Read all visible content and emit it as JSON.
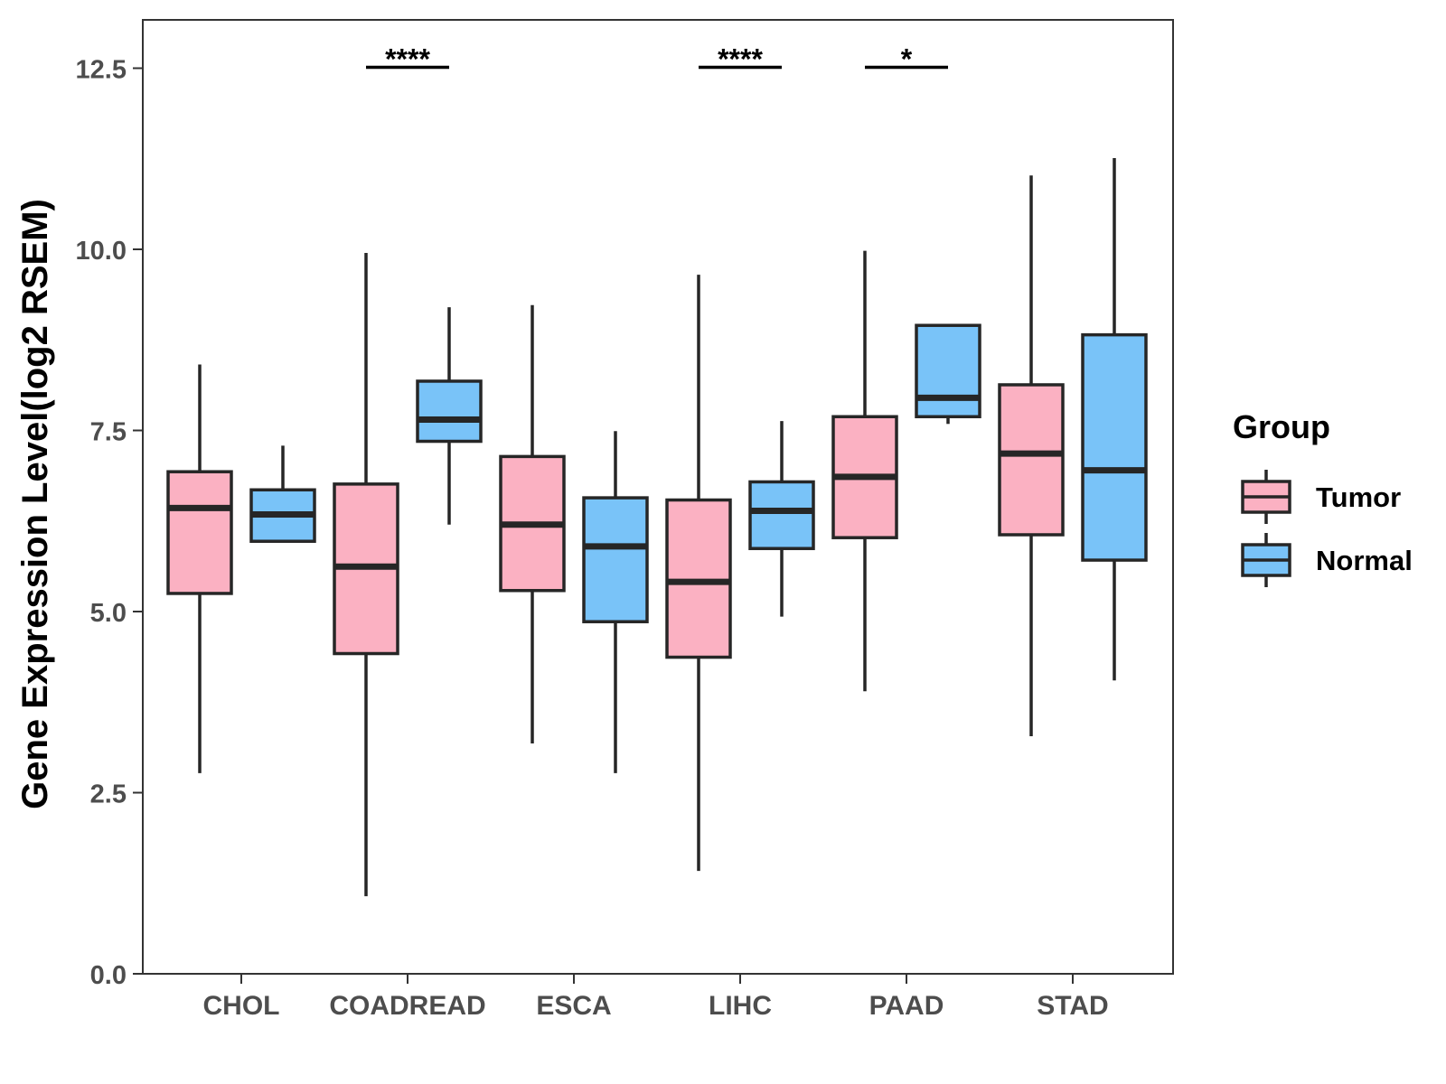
{
  "chart_data": {
    "type": "boxplot",
    "title": "",
    "xlabel": "",
    "ylabel": "Gene Expression Level(log2 RSEM)",
    "ylim": [
      0,
      12.8
    ],
    "yticks": [
      "0.0",
      "2.5",
      "5.0",
      "7.5",
      "10.0",
      "12.5"
    ],
    "ytick_values": [
      0,
      2.5,
      5,
      7.5,
      10,
      12.5
    ],
    "grid": false,
    "categories": [
      "CHOL",
      "COADREAD",
      "ESCA",
      "LIHC",
      "PAAD",
      "STAD"
    ],
    "legend": {
      "title": "Group",
      "position": "right",
      "entries": [
        {
          "name": "Tumor",
          "color": "#fbb1c2"
        },
        {
          "name": "Normal",
          "color": "#79c3f8"
        }
      ]
    },
    "series": [
      {
        "name": "Tumor",
        "color": "#fbb1c2",
        "boxes": [
          {
            "min": 2.77,
            "q1": 5.25,
            "median": 6.43,
            "q3": 6.93,
            "max": 8.41
          },
          {
            "min": 1.07,
            "q1": 4.42,
            "median": 5.62,
            "q3": 6.76,
            "max": 9.95
          },
          {
            "min": 3.18,
            "q1": 5.29,
            "median": 6.2,
            "q3": 7.14,
            "max": 9.23
          },
          {
            "min": 1.42,
            "q1": 4.37,
            "median": 5.41,
            "q3": 6.54,
            "max": 9.65
          },
          {
            "min": 3.9,
            "q1": 6.02,
            "median": 6.86,
            "q3": 7.69,
            "max": 9.98
          },
          {
            "min": 3.28,
            "q1": 6.06,
            "median": 7.18,
            "q3": 8.13,
            "max": 11.02
          }
        ]
      },
      {
        "name": "Normal",
        "color": "#79c3f8",
        "boxes": [
          {
            "min": 5.97,
            "q1": 5.97,
            "median": 6.34,
            "q3": 6.68,
            "max": 7.29
          },
          {
            "min": 6.2,
            "q1": 7.35,
            "median": 7.65,
            "q3": 8.18,
            "max": 9.2
          },
          {
            "min": 2.77,
            "q1": 4.86,
            "median": 5.9,
            "q3": 6.57,
            "max": 7.49
          },
          {
            "min": 4.93,
            "q1": 5.87,
            "median": 6.39,
            "q3": 6.79,
            "max": 7.63
          },
          {
            "min": 7.59,
            "q1": 7.69,
            "median": 7.95,
            "q3": 8.95,
            "max": 8.95
          },
          {
            "min": 4.05,
            "q1": 5.71,
            "median": 6.95,
            "q3": 8.82,
            "max": 11.26
          }
        ]
      }
    ],
    "annotations": [
      {
        "category": "COADREAD",
        "label": "****"
      },
      {
        "category": "LIHC",
        "label": "****"
      },
      {
        "category": "PAAD",
        "label": "*"
      }
    ]
  }
}
